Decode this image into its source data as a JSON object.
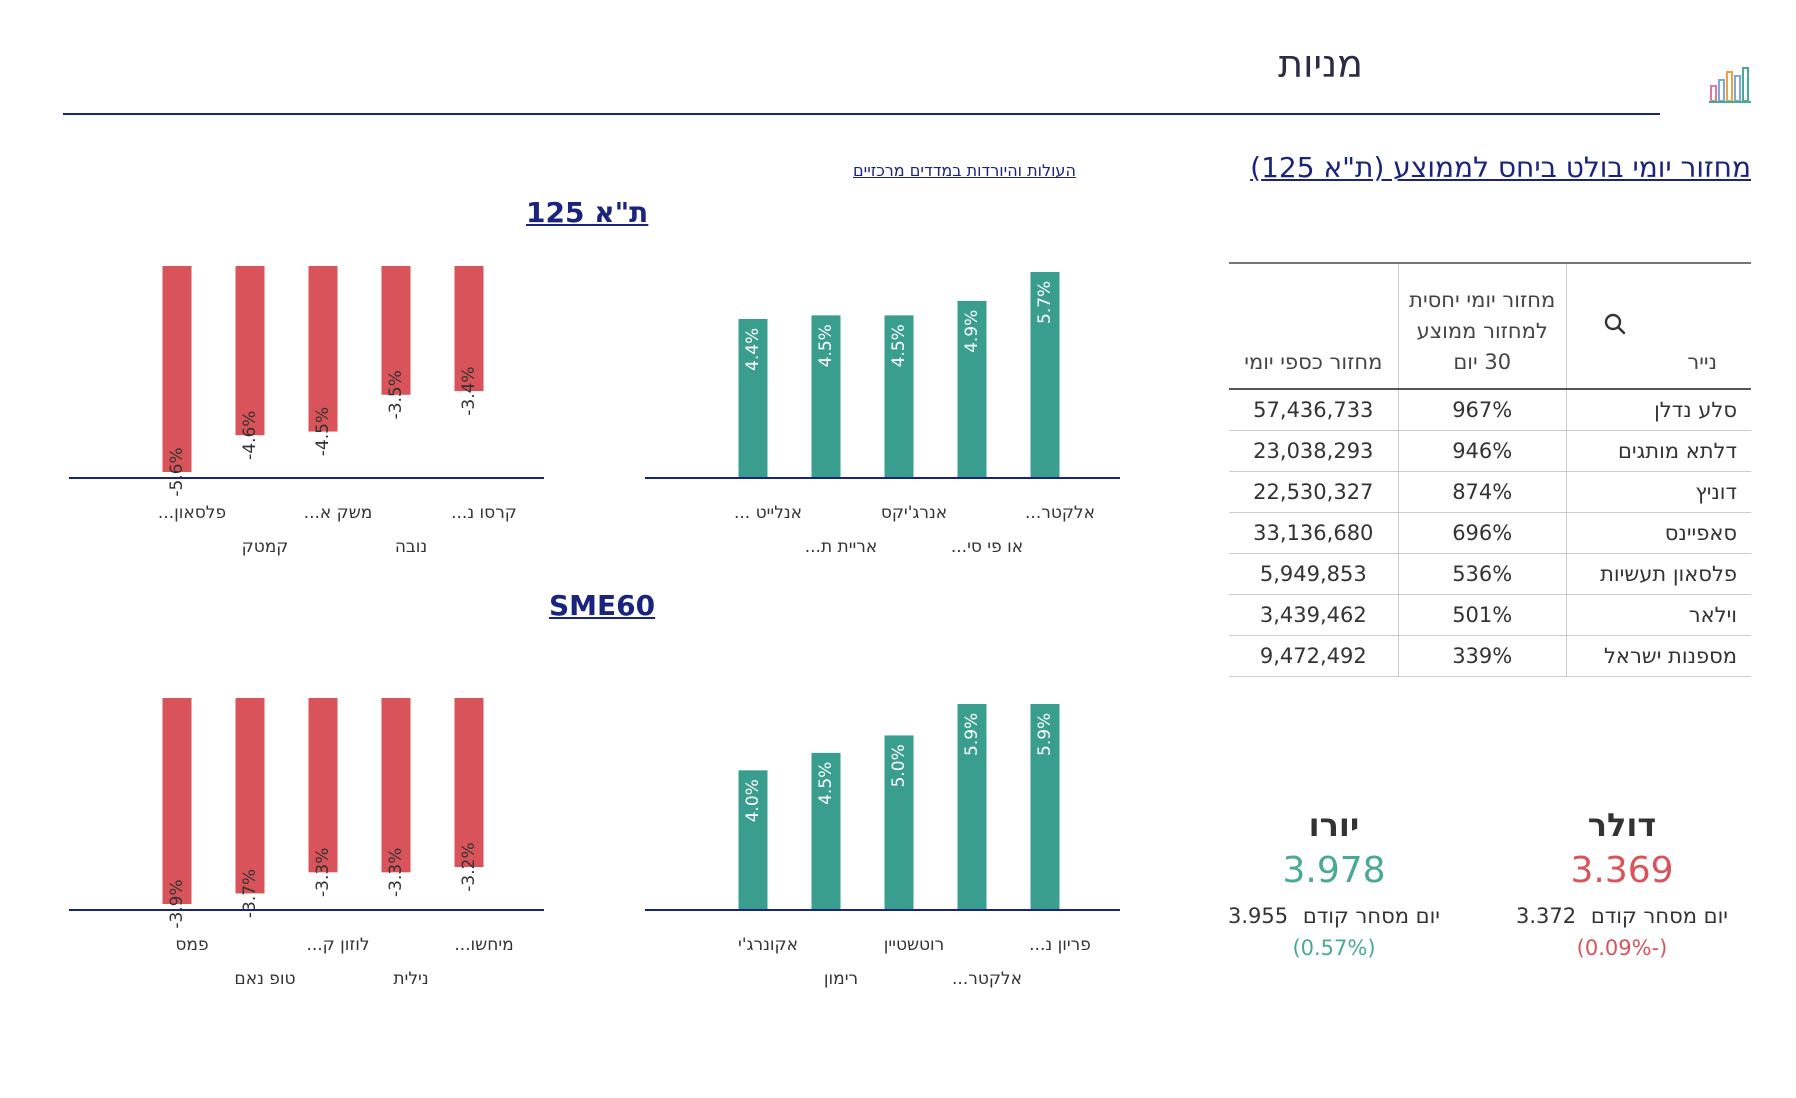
{
  "header": {
    "title": "מניות"
  },
  "colors": {
    "navy": "#1a237e",
    "up": "#3a9e8e",
    "down": "#d9535a",
    "euro": "#4aa996",
    "dollar": "#d9535a"
  },
  "volume_table": {
    "title": "מחזור יומי בולט ביחס לממוצע (ת\"א 125)",
    "headers": {
      "name": "נייר",
      "relative": "מחזור יומי יחסית למחזור ממוצע 30 יום",
      "volume": "מחזור כספי יומי"
    },
    "rows": [
      {
        "name": "סלע נדלן",
        "relative": "967%",
        "volume": "57,436,733"
      },
      {
        "name": "דלתא מותגים",
        "relative": "946%",
        "volume": "23,038,293"
      },
      {
        "name": "דוניץ",
        "relative": "874%",
        "volume": "22,530,327"
      },
      {
        "name": "סאפיינס",
        "relative": "696%",
        "volume": "33,136,680"
      },
      {
        "name": "פלסאון תעשיות",
        "relative": "536%",
        "volume": "5,949,853"
      },
      {
        "name": "וילאר",
        "relative": "501%",
        "volume": "3,439,462"
      },
      {
        "name": "מספנות ישראל",
        "relative": "339%",
        "volume": "9,472,492"
      }
    ]
  },
  "movers": {
    "link": "העולות והיורדות במדדים מרכזיים",
    "ta125_title": "ת\"א 125",
    "sme60_title": "SME60"
  },
  "currencies": {
    "dollar": {
      "label": "דולר",
      "rate": "3.369",
      "prev_label": "יום מסחר קודם",
      "prev": "3.372",
      "change": "(-0.09%)"
    },
    "euro": {
      "label": "יורו",
      "rate": "3.978",
      "prev_label": "יום מסחר קודם",
      "prev": "3.955",
      "change": "(0.57%)"
    }
  },
  "chart_data": [
    {
      "id": "ta125-up",
      "type": "bar",
      "categories": [
        "אלקטר...",
        "או פי סי...",
        "אנרג'יקס",
        "אריית ת...",
        "אנלייט ..."
      ],
      "values": [
        5.7,
        4.9,
        4.5,
        4.5,
        4.4
      ],
      "labels": [
        "5.7%",
        "4.9%",
        "4.5%",
        "4.5%",
        "4.4%"
      ],
      "ylim": [
        0,
        5.7
      ],
      "color": "#3a9e8e"
    },
    {
      "id": "ta125-down",
      "type": "bar",
      "categories": [
        "קרסו נ...",
        "נובה",
        "משק א...",
        "קמטק",
        "פלסאון..."
      ],
      "values": [
        -3.4,
        -3.5,
        -4.5,
        -4.6,
        -5.6
      ],
      "labels": [
        "-3.4%",
        "-3.5%",
        "-4.5%",
        "-4.6%",
        "-5.6%"
      ],
      "ylim": [
        -5.6,
        0
      ],
      "color": "#d9535a"
    },
    {
      "id": "sme60-up",
      "type": "bar",
      "categories": [
        "פריון נ...",
        "אלקטר...",
        "רוטשטיין",
        "רימון",
        "אקונרג'י"
      ],
      "values": [
        5.9,
        5.9,
        5.0,
        4.5,
        4.0
      ],
      "labels": [
        "5.9%",
        "5.9%",
        "5.0%",
        "4.5%",
        "4.0%"
      ],
      "ylim": [
        0,
        5.9
      ],
      "color": "#3a9e8e"
    },
    {
      "id": "sme60-down",
      "type": "bar",
      "categories": [
        "מיחשו...",
        "נילית",
        "לוזון ק...",
        "טופ נאם",
        "פמס"
      ],
      "values": [
        -3.2,
        -3.3,
        -3.3,
        -3.7,
        -3.9
      ],
      "labels": [
        "-3.2%",
        "-3.3%",
        "-3.3%",
        "-3.7%",
        "-3.9%"
      ],
      "ylim": [
        -3.9,
        0
      ],
      "color": "#d9535a"
    }
  ]
}
